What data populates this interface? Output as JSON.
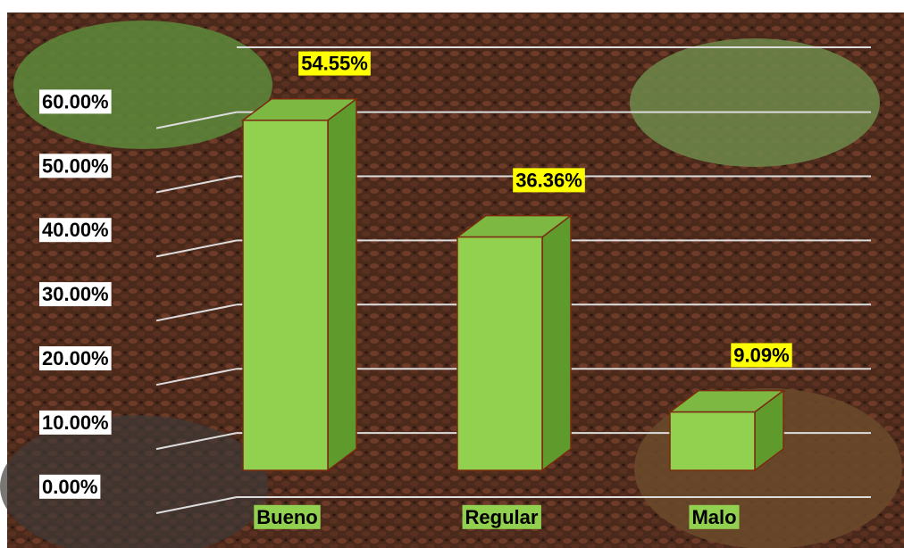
{
  "chart_data": {
    "type": "bar3d",
    "categories": [
      "Bueno",
      "Regular",
      "Malo"
    ],
    "values": [
      54.55,
      36.36,
      9.09
    ],
    "value_labels": [
      "54.55%",
      "36.36%",
      "9.09%"
    ],
    "color": "#92d050",
    "ylim": [
      0,
      70
    ],
    "yticks": [
      {
        "value": 0,
        "label": "0.00%"
      },
      {
        "value": 10,
        "label": "10.00%"
      },
      {
        "value": 20,
        "label": "20.00%"
      },
      {
        "value": 30,
        "label": "30.00%"
      },
      {
        "value": 40,
        "label": "40.00%"
      },
      {
        "value": 50,
        "label": "50.00%"
      },
      {
        "value": 60,
        "label": "60.00%"
      }
    ],
    "grid": true
  }
}
